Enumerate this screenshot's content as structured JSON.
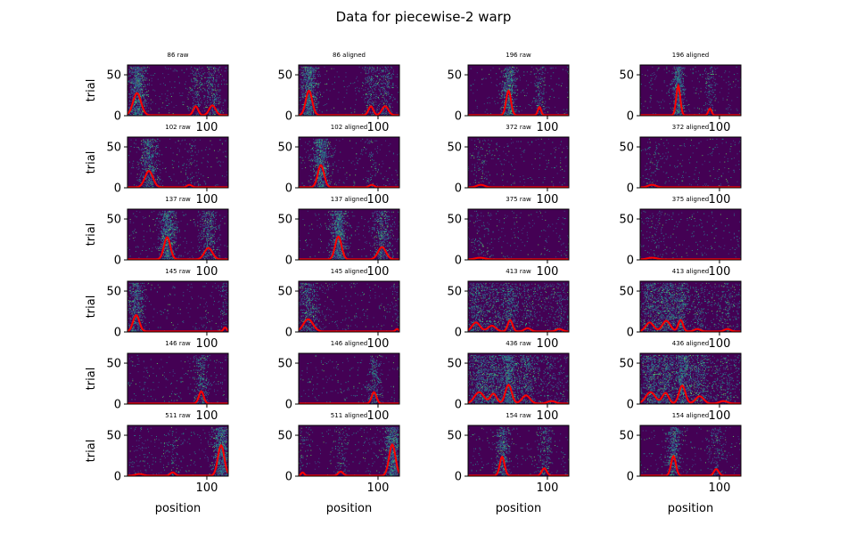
{
  "figure": {
    "title": "Data for piecewise-2 warp",
    "ylabel": "trial",
    "xlabel": "position",
    "colors": {
      "bg": "#440154",
      "raster": [
        "#3b528b",
        "#21918c",
        "#5ec962"
      ],
      "mean": "#ff0000",
      "axes": "#000000"
    }
  },
  "chart_data": {
    "type": "heatmap",
    "xlim": [
      0,
      127
    ],
    "ylim": [
      0,
      62
    ],
    "yticks": [
      0,
      50
    ],
    "xticks": [
      100
    ],
    "panels": [
      {
        "title": "86 raw",
        "peaks": [
          [
            12,
            27,
            5
          ],
          [
            86,
            11,
            3
          ],
          [
            107,
            12,
            4
          ]
        ]
      },
      {
        "title": "86 aligned",
        "peaks": [
          [
            13,
            30,
            4
          ],
          [
            91,
            11,
            3
          ],
          [
            109,
            11,
            4
          ]
        ]
      },
      {
        "title": "196 raw",
        "peaks": [
          [
            51,
            30,
            3
          ],
          [
            90,
            10,
            2
          ]
        ]
      },
      {
        "title": "196 aligned",
        "peaks": [
          [
            48,
            36,
            2.5
          ],
          [
            88,
            8,
            2
          ]
        ]
      },
      {
        "title": "102 raw",
        "peaks": [
          [
            27,
            20,
            5
          ],
          [
            78,
            3,
            3
          ]
        ]
      },
      {
        "title": "102 aligned",
        "peaks": [
          [
            28,
            27,
            4
          ],
          [
            92,
            3,
            3
          ]
        ]
      },
      {
        "title": "372 raw",
        "peaks": [
          [
            16,
            3,
            5
          ]
        ]
      },
      {
        "title": "372 aligned",
        "peaks": [
          [
            15,
            3,
            5
          ]
        ]
      },
      {
        "title": "137 raw",
        "peaks": [
          [
            50,
            27,
            4
          ],
          [
            102,
            14,
            5
          ]
        ]
      },
      {
        "title": "137 aligned",
        "peaks": [
          [
            50,
            28,
            4
          ],
          [
            105,
            15,
            5
          ]
        ]
      },
      {
        "title": "375 raw",
        "peaks": [
          [
            15,
            2,
            6
          ]
        ]
      },
      {
        "title": "375 aligned",
        "peaks": [
          [
            15,
            2,
            6
          ]
        ]
      },
      {
        "title": "145 raw",
        "peaks": [
          [
            11,
            20,
            4
          ],
          [
            123,
            5,
            2
          ]
        ]
      },
      {
        "title": "145 aligned",
        "peaks": [
          [
            12,
            15,
            6
          ],
          [
            124,
            3,
            2
          ]
        ]
      },
      {
        "title": "413 raw",
        "peaks": [
          [
            10,
            11,
            5
          ],
          [
            30,
            7,
            5
          ],
          [
            53,
            14,
            3
          ],
          [
            75,
            4,
            4
          ],
          [
            115,
            3,
            4
          ]
        ]
      },
      {
        "title": "413 aligned",
        "peaks": [
          [
            12,
            11,
            5
          ],
          [
            33,
            13,
            5
          ],
          [
            51,
            14,
            3
          ],
          [
            72,
            3,
            4
          ],
          [
            110,
            3,
            4
          ]
        ]
      },
      {
        "title": "146 raw",
        "peaks": [
          [
            93,
            15,
            3
          ]
        ]
      },
      {
        "title": "146 aligned",
        "peaks": [
          [
            95,
            14,
            3
          ]
        ]
      },
      {
        "title": "436 raw",
        "peaks": [
          [
            14,
            14,
            6
          ],
          [
            32,
            12,
            4
          ],
          [
            51,
            23,
            4
          ],
          [
            73,
            10,
            5
          ],
          [
            105,
            3,
            5
          ]
        ]
      },
      {
        "title": "436 aligned",
        "peaks": [
          [
            13,
            14,
            6
          ],
          [
            32,
            13,
            4
          ],
          [
            53,
            22,
            4
          ],
          [
            75,
            9,
            5
          ],
          [
            105,
            3,
            5
          ]
        ]
      },
      {
        "title": "511 raw",
        "peaks": [
          [
            15,
            2,
            5
          ],
          [
            57,
            4,
            3
          ],
          [
            118,
            37,
            4
          ]
        ]
      },
      {
        "title": "511 aligned",
        "peaks": [
          [
            5,
            4,
            2
          ],
          [
            53,
            5,
            3
          ],
          [
            118,
            38,
            4
          ]
        ]
      },
      {
        "title": "154 raw",
        "peaks": [
          [
            43,
            23,
            3
          ],
          [
            96,
            9,
            3
          ]
        ]
      },
      {
        "title": "154 aligned",
        "peaks": [
          [
            42,
            24,
            3
          ],
          [
            96,
            8,
            3
          ]
        ]
      }
    ]
  }
}
